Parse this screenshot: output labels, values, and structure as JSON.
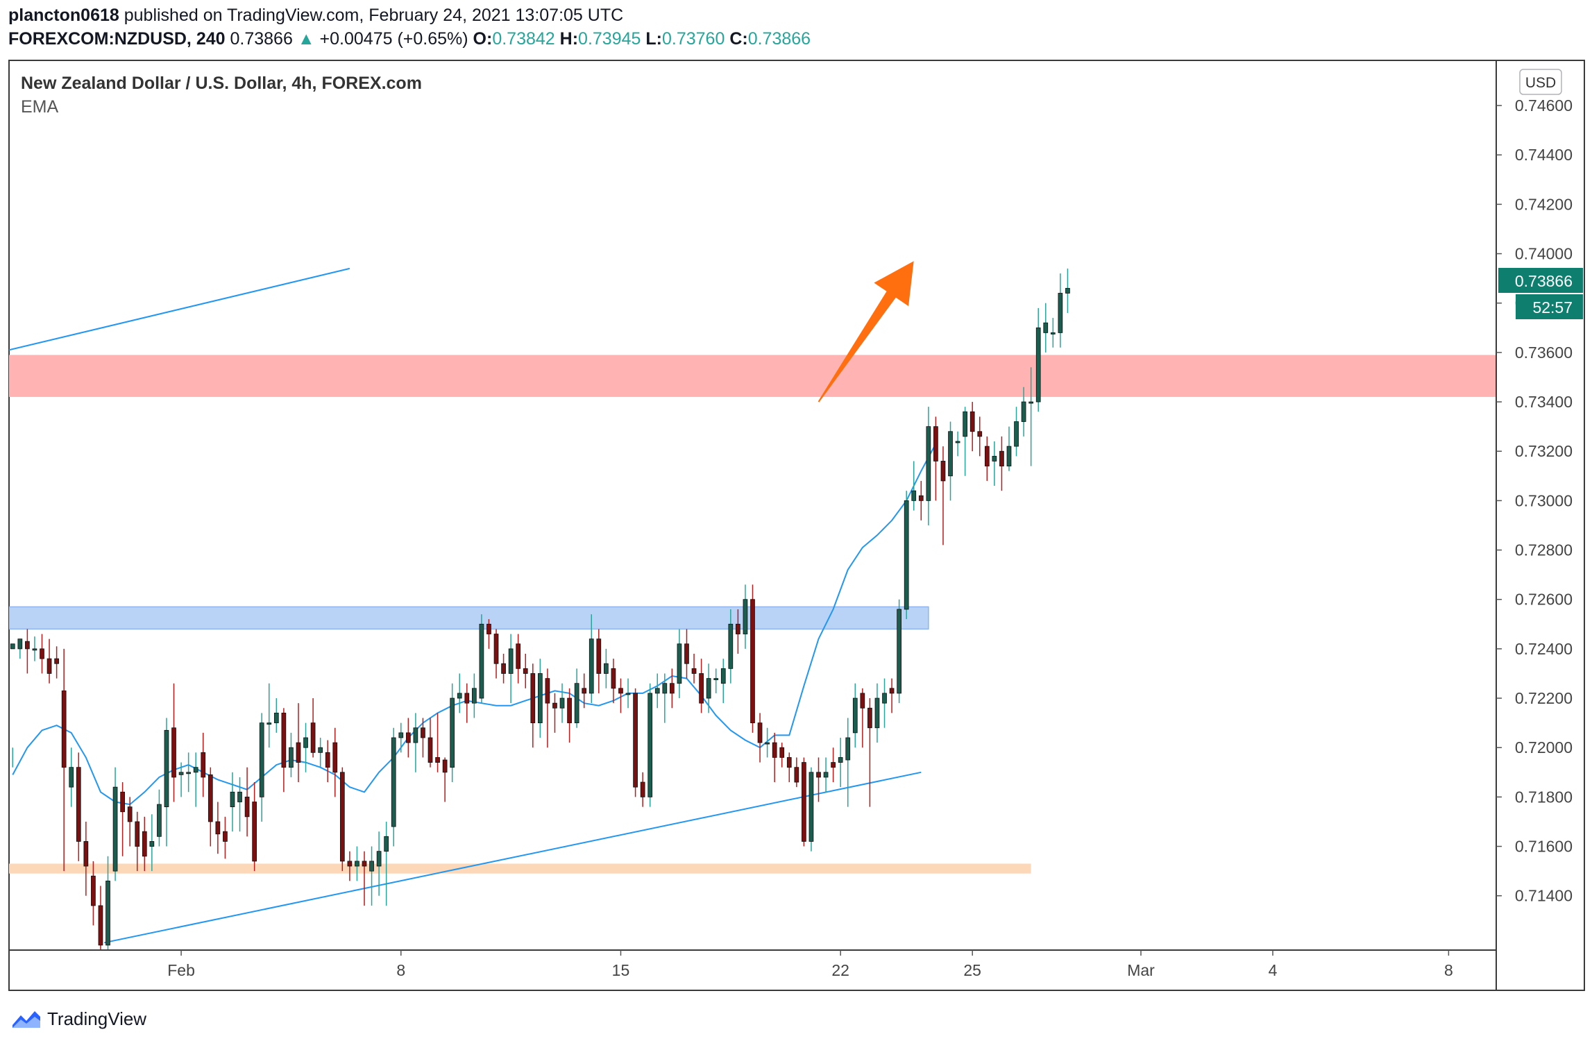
{
  "header": {
    "author": "plancton0618",
    "published": "published on TradingView.com, February 24, 2021 13:07:05 UTC",
    "symbol": "FOREXCOM:NZDUSD, 240",
    "price": "0.73866",
    "change": "+0.00475 (+0.65%)",
    "o_label": "O:",
    "o_value": "0.73842",
    "h_label": "H:",
    "h_value": "0.73945",
    "l_label": "L:",
    "l_value": "0.73760",
    "c_label": "C:",
    "c_value": "0.73866"
  },
  "legend": {
    "title": "New Zealand Dollar / U.S. Dollar, 4h, FOREX.com",
    "indicator": "EMA"
  },
  "currency_badge": "USD",
  "price_label": "0.73866",
  "countdown_label": "52:57",
  "footer": {
    "brand": "TradingView"
  },
  "colors": {
    "up": "#26a69a",
    "candle_up_body": "#1b5e50",
    "candle_down_body": "#7a1010",
    "down_wick": "#b71c1c",
    "ema": "#2196f3",
    "trendline": "#2196f3",
    "resistance_zone": "#ffb3b3",
    "support_zone_blue": "#b9d3f7",
    "support_zone_orange": "#fdd8b8",
    "arrow": "#ff6f10",
    "price_tag": "#0e7f6e"
  },
  "chart_data": {
    "type": "candlestick",
    "title": "New Zealand Dollar / U.S. Dollar, 4h, FOREX.com",
    "y_ticks": [
      "0.74600",
      "0.74400",
      "0.74200",
      "0.74000",
      "0.73800",
      "0.73600",
      "0.73400",
      "0.73200",
      "0.73000",
      "0.72800",
      "0.72600",
      "0.72400",
      "0.72200",
      "0.72000",
      "0.71800",
      "0.71600",
      "0.71400"
    ],
    "x_ticks": [
      {
        "label": "Feb",
        "index": 23
      },
      {
        "label": "8",
        "index": 53
      },
      {
        "label": "15",
        "index": 83
      },
      {
        "label": "22",
        "index": 113
      },
      {
        "label": "25",
        "index": 131
      },
      {
        "label": "Mar",
        "index": 154
      },
      {
        "label": "4",
        "index": 172
      },
      {
        "label": "8",
        "index": 196
      }
    ],
    "ylim": [
      0.7118,
      0.7478
    ],
    "x_range": [
      -0.5,
      202.5
    ],
    "zones": [
      {
        "name": "resistance",
        "from": 0.7342,
        "to": 0.7359,
        "x_end": 202.5
      },
      {
        "name": "support-blue",
        "from": 0.7248,
        "to": 0.7257,
        "x_end": 125
      },
      {
        "name": "support-orange",
        "from": 0.7149,
        "to": 0.7153,
        "x_end": 139
      }
    ],
    "trendlines": [
      {
        "name": "upper-channel",
        "x1": -0.5,
        "y1": 0.7361,
        "x2": 46,
        "y2": 0.7394
      },
      {
        "name": "lower-trendline",
        "x1": 12.5,
        "y1": 0.7121,
        "x2": 124,
        "y2": 0.719
      }
    ],
    "arrow": {
      "x1": 110,
      "y1": 0.734,
      "x2": 123,
      "y2": 0.7397
    },
    "ema": [
      [
        0,
        0.7189
      ],
      [
        2,
        0.72
      ],
      [
        4,
        0.7207
      ],
      [
        6,
        0.7209
      ],
      [
        8,
        0.7206
      ],
      [
        10,
        0.7196
      ],
      [
        12,
        0.7182
      ],
      [
        14,
        0.7178
      ],
      [
        16,
        0.7177
      ],
      [
        18,
        0.7182
      ],
      [
        20,
        0.7188
      ],
      [
        22,
        0.7191
      ],
      [
        24,
        0.7193
      ],
      [
        26,
        0.719
      ],
      [
        28,
        0.7187
      ],
      [
        30,
        0.7185
      ],
      [
        32,
        0.7183
      ],
      [
        34,
        0.7188
      ],
      [
        36,
        0.7193
      ],
      [
        38,
        0.7195
      ],
      [
        40,
        0.7194
      ],
      [
        42,
        0.7192
      ],
      [
        44,
        0.7189
      ],
      [
        46,
        0.7184
      ],
      [
        48,
        0.7182
      ],
      [
        50,
        0.719
      ],
      [
        52,
        0.7196
      ],
      [
        54,
        0.7204
      ],
      [
        56,
        0.721
      ],
      [
        58,
        0.7214
      ],
      [
        60,
        0.7217
      ],
      [
        62,
        0.7219
      ],
      [
        64,
        0.7218
      ],
      [
        66,
        0.7217
      ],
      [
        68,
        0.7217
      ],
      [
        70,
        0.7219
      ],
      [
        72,
        0.7221
      ],
      [
        74,
        0.7223
      ],
      [
        76,
        0.7222
      ],
      [
        78,
        0.7218
      ],
      [
        80,
        0.7217
      ],
      [
        82,
        0.7219
      ],
      [
        84,
        0.7222
      ],
      [
        86,
        0.7222
      ],
      [
        88,
        0.7225
      ],
      [
        90,
        0.7229
      ],
      [
        92,
        0.7228
      ],
      [
        94,
        0.7221
      ],
      [
        96,
        0.7213
      ],
      [
        98,
        0.7207
      ],
      [
        100,
        0.7203
      ],
      [
        102,
        0.72
      ],
      [
        104,
        0.7205
      ],
      [
        106,
        0.7205
      ],
      [
        108,
        0.7225
      ],
      [
        110,
        0.7244
      ],
      [
        112,
        0.7256
      ],
      [
        114,
        0.7272
      ],
      [
        116,
        0.7281
      ],
      [
        118,
        0.7286
      ],
      [
        120,
        0.7292
      ],
      [
        122,
        0.73
      ],
      [
        124,
        0.7312
      ],
      [
        126,
        0.7323
      ]
    ],
    "candles": [
      [
        0,
        0.724,
        0.7242,
        0.72,
        0.7192
      ],
      [
        1,
        0.724,
        0.7244,
        0.7242,
        0.7236
      ],
      [
        2,
        0.7243,
        0.724,
        0.7248,
        0.723
      ],
      [
        3,
        0.724,
        0.724,
        0.7245,
        0.7235
      ],
      [
        4,
        0.724,
        0.7236,
        0.7246,
        0.723
      ],
      [
        5,
        0.7236,
        0.723,
        0.7244,
        0.7226
      ],
      [
        6,
        0.7236,
        0.7234,
        0.7241,
        0.7228
      ],
      [
        7,
        0.7223,
        0.7192,
        0.724,
        0.715
      ],
      [
        8,
        0.7184,
        0.7192,
        0.72,
        0.7176
      ],
      [
        9,
        0.7192,
        0.7162,
        0.7198,
        0.7154
      ],
      [
        10,
        0.7162,
        0.7152,
        0.717,
        0.714
      ],
      [
        11,
        0.7148,
        0.7136,
        0.7154,
        0.7128
      ],
      [
        12,
        0.7136,
        0.712,
        0.7144,
        0.7116
      ],
      [
        13,
        0.712,
        0.7146,
        0.7156,
        0.7116
      ],
      [
        14,
        0.715,
        0.7184,
        0.7192,
        0.7146
      ],
      [
        15,
        0.7182,
        0.7174,
        0.7186,
        0.7156
      ],
      [
        16,
        0.7176,
        0.717,
        0.718,
        0.716
      ],
      [
        17,
        0.717,
        0.716,
        0.7174,
        0.715
      ],
      [
        18,
        0.7166,
        0.7156,
        0.7172,
        0.715
      ],
      [
        19,
        0.716,
        0.7162,
        0.7173,
        0.715
      ],
      [
        20,
        0.7164,
        0.7177,
        0.7183,
        0.716
      ],
      [
        21,
        0.7176,
        0.7207,
        0.7212,
        0.716
      ],
      [
        22,
        0.7208,
        0.7188,
        0.7226,
        0.7178
      ],
      [
        23,
        0.7189,
        0.719,
        0.7194,
        0.718
      ],
      [
        24,
        0.719,
        0.719,
        0.7198,
        0.7182
      ],
      [
        25,
        0.719,
        0.7192,
        0.7198,
        0.7176
      ],
      [
        26,
        0.7198,
        0.7188,
        0.7206,
        0.718
      ],
      [
        27,
        0.7189,
        0.717,
        0.7192,
        0.716
      ],
      [
        28,
        0.717,
        0.7165,
        0.7178,
        0.7157
      ],
      [
        29,
        0.7166,
        0.7162,
        0.7172,
        0.7155
      ],
      [
        30,
        0.7176,
        0.7182,
        0.719,
        0.7166
      ],
      [
        31,
        0.7178,
        0.7182,
        0.7188,
        0.7166
      ],
      [
        32,
        0.718,
        0.7172,
        0.7192,
        0.7164
      ],
      [
        33,
        0.7178,
        0.7154,
        0.7186,
        0.715
      ],
      [
        34,
        0.718,
        0.721,
        0.7214,
        0.717
      ],
      [
        35,
        0.721,
        0.721,
        0.7226,
        0.72
      ],
      [
        36,
        0.721,
        0.7214,
        0.722,
        0.7206
      ],
      [
        37,
        0.7214,
        0.7192,
        0.7216,
        0.7182
      ],
      [
        38,
        0.7192,
        0.72,
        0.7206,
        0.7188
      ],
      [
        39,
        0.7202,
        0.7194,
        0.7218,
        0.7186
      ],
      [
        40,
        0.72,
        0.7204,
        0.721,
        0.719
      ],
      [
        41,
        0.721,
        0.7198,
        0.722,
        0.7196
      ],
      [
        42,
        0.7198,
        0.72,
        0.7204,
        0.7192
      ],
      [
        43,
        0.7198,
        0.7192,
        0.7203,
        0.7186
      ],
      [
        44,
        0.7202,
        0.719,
        0.7208,
        0.718
      ],
      [
        45,
        0.719,
        0.7154,
        0.7192,
        0.715
      ],
      [
        46,
        0.7154,
        0.7152,
        0.7158,
        0.7146
      ],
      [
        47,
        0.7152,
        0.7154,
        0.716,
        0.7146
      ],
      [
        48,
        0.7154,
        0.7152,
        0.7158,
        0.7136
      ],
      [
        49,
        0.715,
        0.7154,
        0.716,
        0.7136
      ],
      [
        50,
        0.7152,
        0.7158,
        0.7166,
        0.714
      ],
      [
        51,
        0.7158,
        0.7164,
        0.717,
        0.7136
      ],
      [
        52,
        0.7168,
        0.7204,
        0.7208,
        0.716
      ],
      [
        53,
        0.7204,
        0.7206,
        0.721,
        0.7198
      ],
      [
        54,
        0.7206,
        0.7202,
        0.7212,
        0.7196
      ],
      [
        55,
        0.7202,
        0.7208,
        0.7214,
        0.719
      ],
      [
        56,
        0.7208,
        0.7204,
        0.7212,
        0.7196
      ],
      [
        57,
        0.7204,
        0.7194,
        0.7212,
        0.7192
      ],
      [
        58,
        0.7196,
        0.7194,
        0.7214,
        0.719
      ],
      [
        59,
        0.7195,
        0.719,
        0.7196,
        0.7178
      ],
      [
        60,
        0.7192,
        0.722,
        0.7226,
        0.7186
      ],
      [
        61,
        0.722,
        0.7222,
        0.723,
        0.7214
      ],
      [
        62,
        0.7222,
        0.7218,
        0.7226,
        0.721
      ],
      [
        63,
        0.7218,
        0.7224,
        0.723,
        0.7212
      ],
      [
        64,
        0.722,
        0.725,
        0.7254,
        0.7218
      ],
      [
        65,
        0.725,
        0.7246,
        0.7252,
        0.724
      ],
      [
        66,
        0.7246,
        0.7234,
        0.7248,
        0.7228
      ],
      [
        67,
        0.7234,
        0.723,
        0.7238,
        0.7226
      ],
      [
        68,
        0.723,
        0.724,
        0.7246,
        0.7218
      ],
      [
        69,
        0.7242,
        0.7232,
        0.7246,
        0.7226
      ],
      [
        70,
        0.7232,
        0.723,
        0.7238,
        0.7224
      ],
      [
        71,
        0.723,
        0.721,
        0.7234,
        0.72
      ],
      [
        72,
        0.721,
        0.723,
        0.7236,
        0.7204
      ],
      [
        73,
        0.7228,
        0.7218,
        0.7232,
        0.72
      ],
      [
        74,
        0.7218,
        0.7216,
        0.7222,
        0.7206
      ],
      [
        75,
        0.7216,
        0.722,
        0.7226,
        0.721
      ],
      [
        76,
        0.722,
        0.721,
        0.7224,
        0.7202
      ],
      [
        77,
        0.721,
        0.7226,
        0.7232,
        0.7208
      ],
      [
        78,
        0.7224,
        0.7222,
        0.723,
        0.7216
      ],
      [
        79,
        0.7222,
        0.7244,
        0.7254,
        0.7218
      ],
      [
        80,
        0.7244,
        0.723,
        0.7248,
        0.7222
      ],
      [
        81,
        0.723,
        0.7234,
        0.724,
        0.7224
      ],
      [
        82,
        0.7232,
        0.7224,
        0.7236,
        0.7218
      ],
      [
        83,
        0.7224,
        0.7222,
        0.7228,
        0.7214
      ],
      [
        84,
        0.7222,
        0.7222,
        0.7228,
        0.7216
      ],
      [
        85,
        0.7222,
        0.7184,
        0.7224,
        0.718
      ],
      [
        86,
        0.7186,
        0.718,
        0.719,
        0.7176
      ],
      [
        87,
        0.718,
        0.7222,
        0.7226,
        0.7176
      ],
      [
        88,
        0.7222,
        0.7224,
        0.723,
        0.7216
      ],
      [
        89,
        0.7222,
        0.7226,
        0.723,
        0.721
      ],
      [
        90,
        0.7226,
        0.7222,
        0.7232,
        0.7216
      ],
      [
        91,
        0.7226,
        0.7242,
        0.7248,
        0.722
      ],
      [
        92,
        0.7242,
        0.7234,
        0.7248,
        0.7228
      ],
      [
        93,
        0.7232,
        0.723,
        0.7238,
        0.7226
      ],
      [
        94,
        0.723,
        0.7218,
        0.7236,
        0.7214
      ],
      [
        95,
        0.722,
        0.7228,
        0.7234,
        0.7214
      ],
      [
        96,
        0.7228,
        0.7228,
        0.7232,
        0.7222
      ],
      [
        97,
        0.7226,
        0.7232,
        0.7236,
        0.7218
      ],
      [
        98,
        0.7232,
        0.725,
        0.7256,
        0.7226
      ],
      [
        99,
        0.725,
        0.7246,
        0.7256,
        0.7238
      ],
      [
        100,
        0.7246,
        0.726,
        0.7266,
        0.724
      ],
      [
        101,
        0.726,
        0.721,
        0.7266,
        0.7206
      ],
      [
        102,
        0.721,
        0.7202,
        0.7214,
        0.7194
      ],
      [
        103,
        0.7202,
        0.7202,
        0.7208,
        0.7196
      ],
      [
        104,
        0.7202,
        0.7196,
        0.7206,
        0.7186
      ],
      [
        105,
        0.72,
        0.7196,
        0.7202,
        0.7192
      ],
      [
        106,
        0.7196,
        0.7192,
        0.7198,
        0.7186
      ],
      [
        107,
        0.7192,
        0.7186,
        0.7196,
        0.7184
      ],
      [
        108,
        0.7194,
        0.7162,
        0.7196,
        0.716
      ],
      [
        109,
        0.7162,
        0.719,
        0.7192,
        0.7158
      ],
      [
        110,
        0.719,
        0.7188,
        0.7196,
        0.7178
      ],
      [
        111,
        0.7188,
        0.719,
        0.7196,
        0.7182
      ],
      [
        112,
        0.7194,
        0.7192,
        0.72,
        0.7186
      ],
      [
        113,
        0.7194,
        0.7196,
        0.7204,
        0.7184
      ],
      [
        114,
        0.7195,
        0.7204,
        0.7212,
        0.7176
      ],
      [
        115,
        0.7206,
        0.722,
        0.7226,
        0.72
      ],
      [
        116,
        0.7222,
        0.7216,
        0.7224,
        0.72
      ],
      [
        117,
        0.7216,
        0.7208,
        0.722,
        0.7176
      ],
      [
        118,
        0.7208,
        0.722,
        0.7226,
        0.7202
      ],
      [
        119,
        0.7218,
        0.7222,
        0.7228,
        0.7208
      ],
      [
        120,
        0.7224,
        0.7222,
        0.7228,
        0.7214
      ],
      [
        121,
        0.7222,
        0.7256,
        0.726,
        0.7218
      ],
      [
        122,
        0.7256,
        0.73,
        0.7304,
        0.7252
      ],
      [
        123,
        0.73,
        0.7304,
        0.7316,
        0.7296
      ],
      [
        124,
        0.7302,
        0.73,
        0.7308,
        0.7292
      ],
      [
        125,
        0.73,
        0.733,
        0.7338,
        0.729
      ],
      [
        126,
        0.733,
        0.7316,
        0.7334,
        0.73
      ],
      [
        127,
        0.7316,
        0.7308,
        0.7322,
        0.7282
      ],
      [
        128,
        0.731,
        0.7328,
        0.7332,
        0.73
      ],
      [
        129,
        0.7324,
        0.7324,
        0.7328,
        0.7318
      ],
      [
        130,
        0.7326,
        0.7336,
        0.7338,
        0.731
      ],
      [
        131,
        0.7336,
        0.7328,
        0.734,
        0.732
      ],
      [
        132,
        0.7328,
        0.7326,
        0.7334,
        0.7318
      ],
      [
        133,
        0.7322,
        0.7314,
        0.7326,
        0.7308
      ],
      [
        134,
        0.7316,
        0.7318,
        0.7324,
        0.7306
      ],
      [
        135,
        0.732,
        0.7314,
        0.7326,
        0.7304
      ],
      [
        136,
        0.7314,
        0.7322,
        0.733,
        0.7312
      ],
      [
        137,
        0.7322,
        0.7332,
        0.7338,
        0.7318
      ],
      [
        138,
        0.7332,
        0.734,
        0.7346,
        0.7326
      ],
      [
        139,
        0.734,
        0.734,
        0.7354,
        0.7314
      ],
      [
        140,
        0.734,
        0.737,
        0.7378,
        0.7336
      ],
      [
        141,
        0.7368,
        0.7372,
        0.738,
        0.736
      ],
      [
        142,
        0.7368,
        0.7368,
        0.7374,
        0.7362
      ],
      [
        143,
        0.7368,
        0.7384,
        0.7392,
        0.7362
      ],
      [
        144,
        0.7384,
        0.7386,
        0.7394,
        0.7376
      ]
    ]
  }
}
